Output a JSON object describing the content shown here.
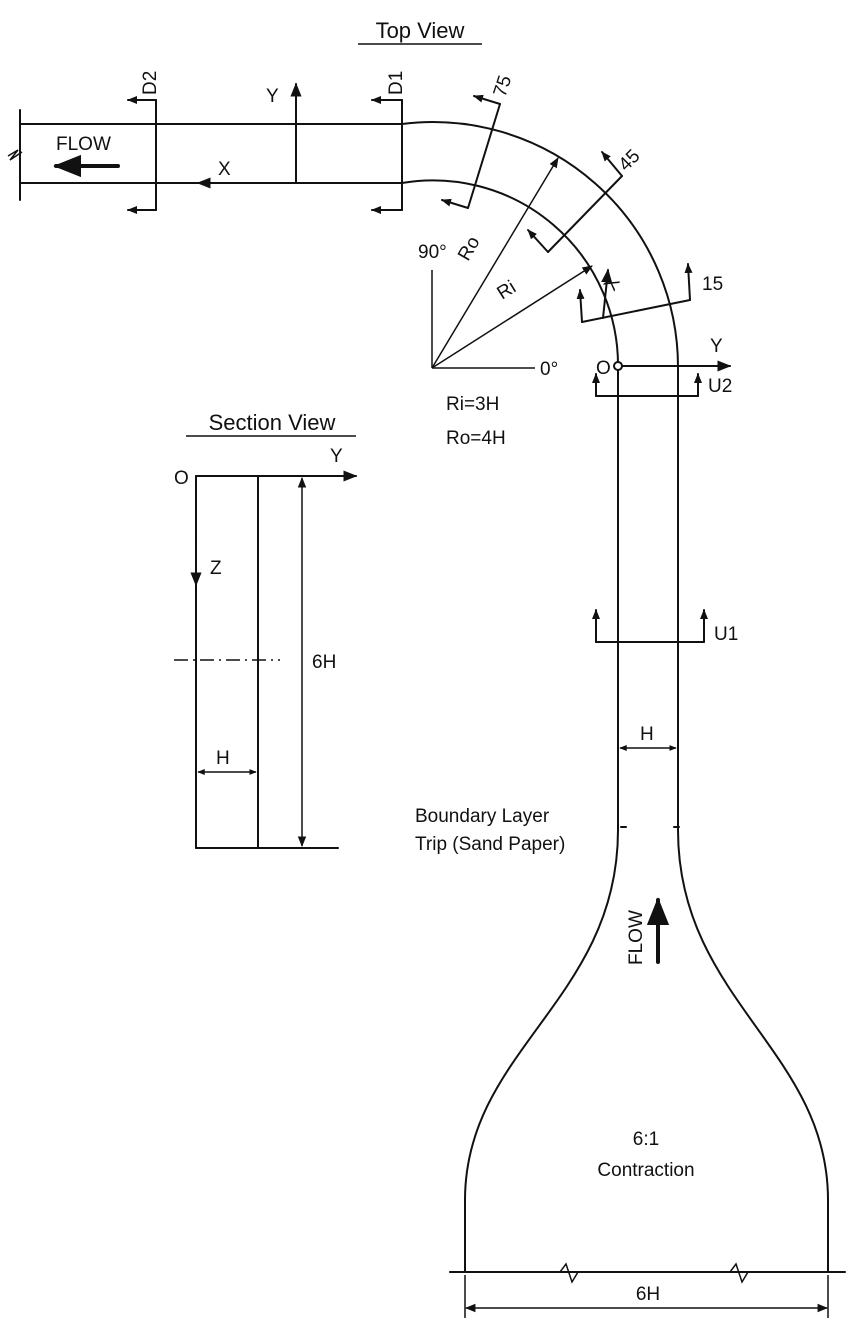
{
  "top_view": {
    "title": "Top View",
    "flow_label": "FLOW",
    "x_label": "X",
    "y_label": "Y",
    "station_d2": "D2",
    "station_d1": "D1",
    "station_75": "75",
    "station_45": "45",
    "station_15": "15",
    "angle_90": "90°",
    "angle_0": "0°",
    "ro_label": "Ro",
    "ri_label": "Ri",
    "bend_x_label": "X",
    "origin_label": "O",
    "inlet_y_label": "Y",
    "station_u2": "U2",
    "station_u1": "U1",
    "ri_eq": "Ri=3H",
    "ro_eq": "Ro=4H",
    "width_label": "H",
    "trip_line1": "Boundary Layer",
    "trip_line2": "Trip (Sand Paper)",
    "flow_label_vertical": "FLOW",
    "contraction_ratio": "6:1",
    "contraction_label": "Contraction",
    "bottom_dim": "6H"
  },
  "section_view": {
    "title": "Section View",
    "origin_label": "O",
    "y_label": "Y",
    "z_label": "Z",
    "height_label": "6H",
    "width_label": "H"
  }
}
